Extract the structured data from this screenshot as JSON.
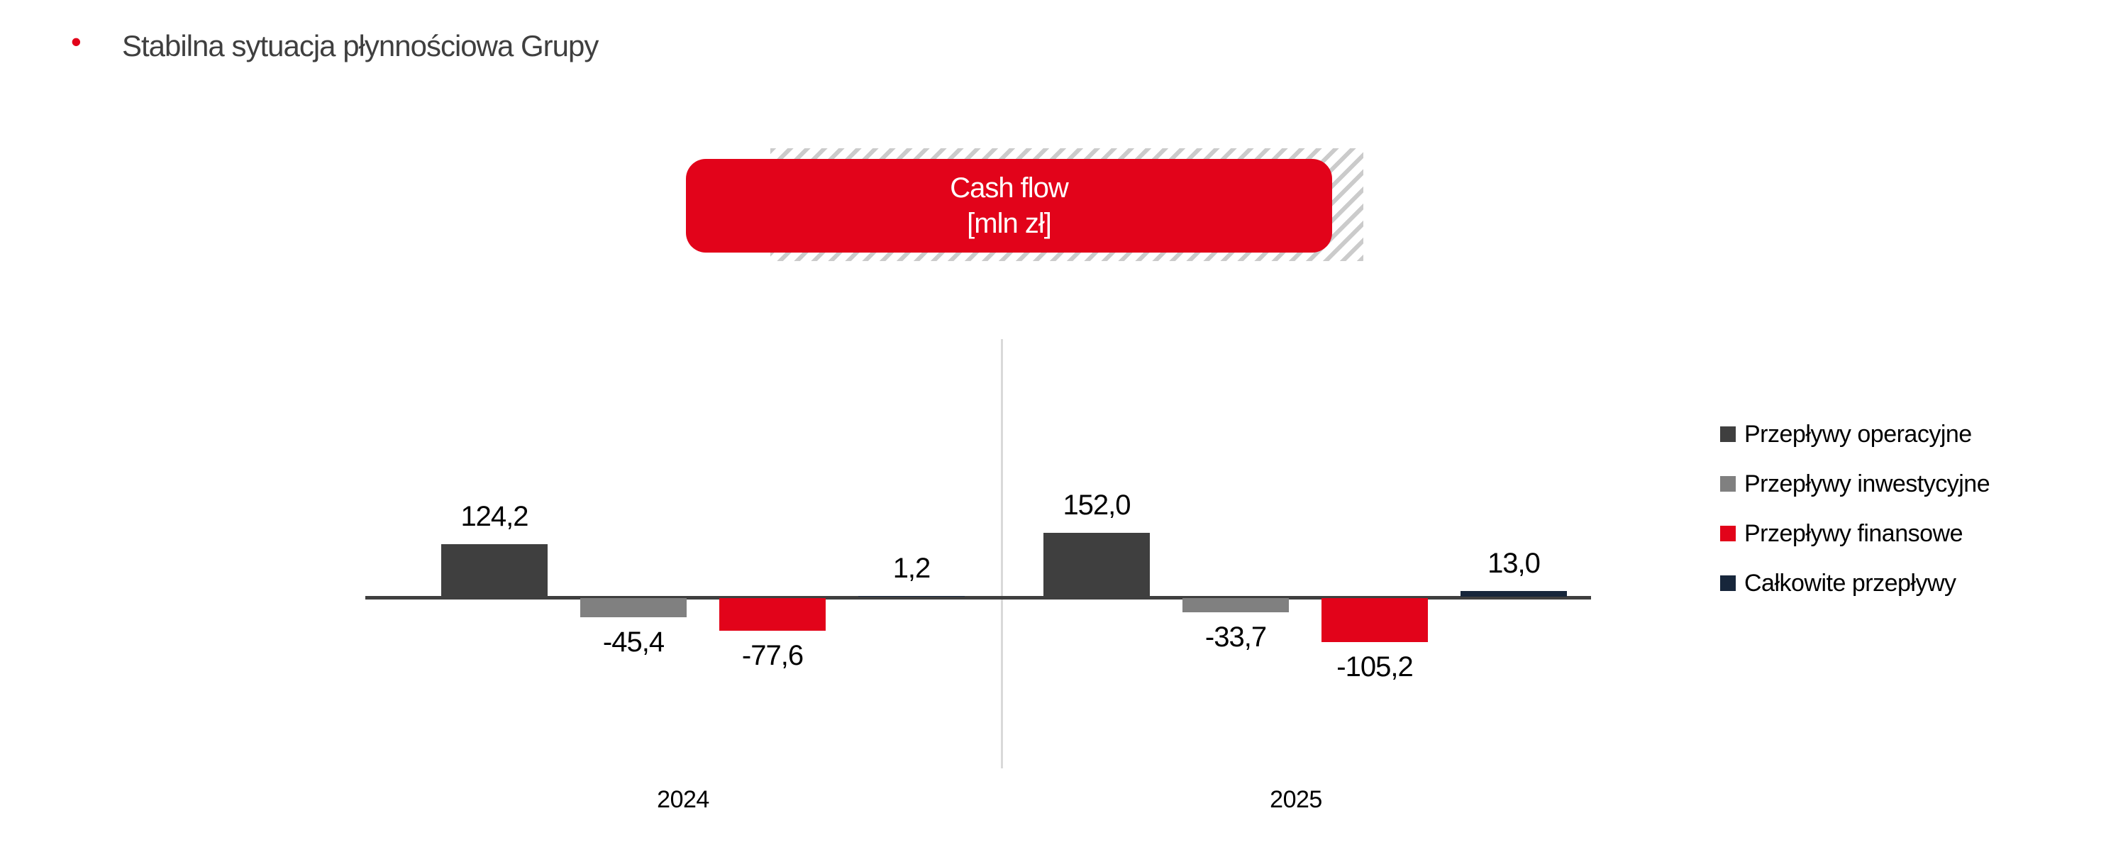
{
  "header": {
    "bullet": "•",
    "title": "Stabilna sytuacja płynnościowa Grupy"
  },
  "title_box": {
    "line1": "Cash flow",
    "line2": "[mln zł]",
    "fill_color": "#e2031a",
    "text_color": "#ffffff",
    "hatch_color": "#cbcbcb"
  },
  "colors": {
    "operating": "#3f3f3f",
    "investing": "#808080",
    "financing": "#e2031a",
    "total": "#17263b",
    "axis_line": "#3f3f3f",
    "divider_line": "#d9d9d9",
    "title_text": "#3f3f3f",
    "bullet": "#e2031a"
  },
  "chart_data": {
    "type": "bar",
    "title": "Cash flow [mln zł]",
    "unit": "mln zł",
    "categories": [
      "2024",
      "2025"
    ],
    "series": [
      {
        "name": "Przepływy operacyjne",
        "color": "#3f3f3f",
        "values": [
          124.2,
          152.0
        ],
        "labels": [
          "124,2",
          "152,0"
        ]
      },
      {
        "name": "Przepływy inwestycyjne",
        "color": "#808080",
        "values": [
          -45.4,
          -33.7
        ],
        "labels": [
          "-45,4",
          "-33,7"
        ]
      },
      {
        "name": "Przepływy finansowe",
        "color": "#e2031a",
        "values": [
          -77.6,
          -105.2
        ],
        "labels": [
          "-77,6",
          "-105,2"
        ]
      },
      {
        "name": "Całkowite przepływy",
        "color": "#17263b",
        "values": [
          1.2,
          13.0
        ],
        "labels": [
          "1,2",
          "13,0"
        ]
      }
    ],
    "legend_position": "right",
    "grid": false,
    "baseline": 0
  }
}
